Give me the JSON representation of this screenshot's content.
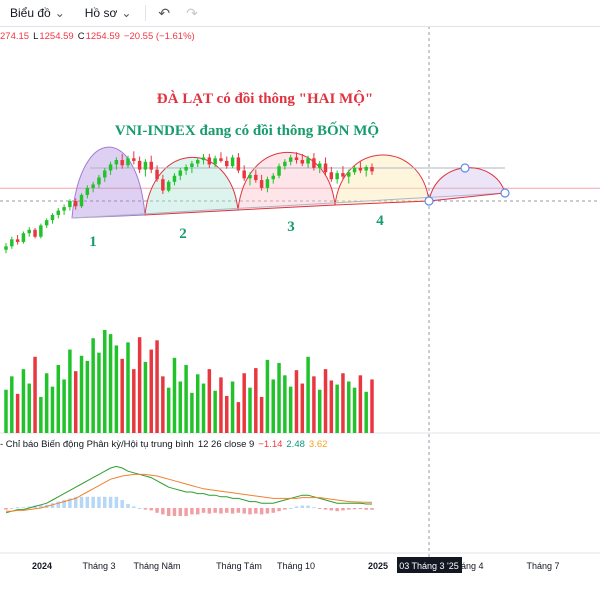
{
  "toolbar": {
    "chart_label": "Biểu đồ",
    "profile_label": "Hồ sơ",
    "chevron_icon": "chevron-down-icon",
    "undo_icon": "undo-icon",
    "redo_icon": "redo-icon"
  },
  "ohlc": {
    "h_value": "274.15",
    "l_label": "L",
    "l_value": "1254.59",
    "c_label": "C",
    "c_value": "1254.59",
    "change": "−20.55 (−1.61%)"
  },
  "macd_legend": {
    "name": "- Chỉ báo Biến động Phân kỳ/Hội tụ trung bình",
    "params": "12 26 close 9",
    "hist": "−1.14",
    "macd": "2.48",
    "signal": "3.62"
  },
  "annotations": {
    "headline_red": "ĐÀ LẠT có đồi thông \"HAI MỘ\"",
    "headline_green": "VNI-INDEX đang có đồi thông BỐN MỘ",
    "mound_labels": [
      "1",
      "2",
      "3",
      "4"
    ]
  },
  "crosshair_label": "03 Tháng 3 '25",
  "colors": {
    "up": "#22c22b",
    "down": "#e8373f",
    "headline_red": "#e0333f",
    "headline_green": "#179c6c",
    "macd_line": "#2e9e2e",
    "signal_line": "#f2812e",
    "hist_up": "#b6d7f5",
    "hist_down": "#f0a0a5"
  },
  "chart_data": {
    "type": "candlestick",
    "x_ticks": [
      "2024",
      "Tháng 3",
      "Tháng Năm",
      "Tháng Tám",
      "Tháng 10",
      "2025",
      "Tháng 4",
      "Tháng 7"
    ],
    "price_reference": 1254.59,
    "candles": [
      [
        0,
        1184,
        1192,
        1180,
        1188
      ],
      [
        1,
        1188,
        1199,
        1185,
        1196
      ],
      [
        2,
        1196,
        1201,
        1190,
        1193
      ],
      [
        3,
        1193,
        1205,
        1191,
        1203
      ],
      [
        4,
        1203,
        1210,
        1199,
        1207
      ],
      [
        5,
        1207,
        1209,
        1197,
        1199
      ],
      [
        6,
        1199,
        1214,
        1197,
        1212
      ],
      [
        7,
        1212,
        1220,
        1209,
        1218
      ],
      [
        8,
        1218,
        1226,
        1214,
        1224
      ],
      [
        9,
        1224,
        1232,
        1220,
        1229
      ],
      [
        10,
        1229,
        1236,
        1224,
        1233
      ],
      [
        11,
        1233,
        1242,
        1229,
        1240
      ],
      [
        12,
        1240,
        1243,
        1230,
        1234
      ],
      [
        13,
        1234,
        1249,
        1232,
        1247
      ],
      [
        14,
        1247,
        1258,
        1243,
        1255
      ],
      [
        15,
        1255,
        1262,
        1250,
        1259
      ],
      [
        16,
        1259,
        1270,
        1255,
        1267
      ],
      [
        17,
        1267,
        1278,
        1262,
        1275
      ],
      [
        18,
        1275,
        1285,
        1270,
        1282
      ],
      [
        19,
        1282,
        1290,
        1276,
        1287
      ],
      [
        20,
        1287,
        1294,
        1277,
        1281
      ],
      [
        21,
        1281,
        1292,
        1278,
        1289
      ],
      [
        22,
        1289,
        1297,
        1282,
        1286
      ],
      [
        23,
        1286,
        1291,
        1272,
        1276
      ],
      [
        24,
        1276,
        1288,
        1268,
        1285
      ],
      [
        25,
        1285,
        1292,
        1272,
        1276
      ],
      [
        26,
        1276,
        1281,
        1262,
        1265
      ],
      [
        27,
        1265,
        1270,
        1248,
        1252
      ],
      [
        28,
        1252,
        1264,
        1250,
        1262
      ],
      [
        29,
        1262,
        1272,
        1258,
        1269
      ],
      [
        30,
        1269,
        1278,
        1264,
        1275
      ],
      [
        31,
        1275,
        1282,
        1270,
        1279
      ],
      [
        32,
        1279,
        1286,
        1272,
        1283
      ],
      [
        33,
        1283,
        1290,
        1279,
        1287
      ],
      [
        34,
        1287,
        1294,
        1282,
        1290
      ],
      [
        35,
        1290,
        1294,
        1278,
        1282
      ],
      [
        36,
        1282,
        1292,
        1279,
        1289
      ],
      [
        37,
        1289,
        1296,
        1284,
        1286
      ],
      [
        38,
        1286,
        1291,
        1277,
        1280
      ],
      [
        39,
        1280,
        1293,
        1278,
        1290
      ],
      [
        40,
        1290,
        1295,
        1272,
        1275
      ],
      [
        41,
        1275,
        1281,
        1263,
        1266
      ],
      [
        42,
        1266,
        1273,
        1258,
        1270
      ],
      [
        43,
        1270,
        1276,
        1261,
        1264
      ],
      [
        44,
        1264,
        1270,
        1252,
        1255
      ],
      [
        45,
        1255,
        1268,
        1250,
        1265
      ],
      [
        46,
        1265,
        1272,
        1260,
        1269
      ],
      [
        47,
        1269,
        1283,
        1266,
        1280
      ],
      [
        48,
        1280,
        1288,
        1276,
        1285
      ],
      [
        49,
        1285,
        1293,
        1281,
        1290
      ],
      [
        50,
        1290,
        1296,
        1283,
        1287
      ],
      [
        51,
        1287,
        1294,
        1280,
        1283
      ],
      [
        52,
        1283,
        1292,
        1278,
        1289
      ],
      [
        53,
        1289,
        1295,
        1275,
        1278
      ],
      [
        54,
        1278,
        1286,
        1272,
        1283
      ],
      [
        55,
        1283,
        1290,
        1270,
        1273
      ],
      [
        56,
        1273,
        1279,
        1262,
        1265
      ],
      [
        57,
        1265,
        1275,
        1260,
        1272
      ],
      [
        58,
        1272,
        1280,
        1265,
        1268
      ],
      [
        59,
        1268,
        1276,
        1260,
        1273
      ],
      [
        60,
        1273,
        1281,
        1270,
        1278
      ],
      [
        61,
        1278,
        1285,
        1272,
        1275
      ],
      [
        62,
        1275,
        1281,
        1268,
        1279
      ],
      [
        63,
        1279,
        1283,
        1270,
        1274
      ]
    ],
    "volume_relative": [
      0.42,
      0.55,
      0.38,
      0.62,
      0.48,
      0.74,
      0.35,
      0.58,
      0.45,
      0.66,
      0.52,
      0.81,
      0.6,
      0.75,
      0.7,
      0.92,
      0.78,
      1.0,
      0.96,
      0.85,
      0.72,
      0.88,
      0.62,
      0.93,
      0.69,
      0.81,
      0.9,
      0.55,
      0.44,
      0.73,
      0.5,
      0.66,
      0.39,
      0.57,
      0.48,
      0.62,
      0.41,
      0.54,
      0.36,
      0.5,
      0.3,
      0.58,
      0.44,
      0.63,
      0.35,
      0.71,
      0.52,
      0.68,
      0.56,
      0.45,
      0.61,
      0.48,
      0.74,
      0.55,
      0.42,
      0.62,
      0.51,
      0.47,
      0.58,
      0.5,
      0.44,
      0.56,
      0.4,
      0.52
    ],
    "macd": [
      -3,
      -2,
      -1,
      -1,
      0,
      1,
      2,
      3,
      5,
      7,
      9,
      11,
      13,
      15,
      17,
      19,
      21,
      23,
      25,
      26,
      25,
      23,
      22,
      21,
      20,
      19,
      17,
      15,
      13,
      12,
      11,
      10,
      10,
      9,
      9,
      8,
      8,
      7,
      7,
      6,
      6,
      5,
      4,
      4,
      3,
      3,
      3,
      4,
      5,
      6,
      7,
      8,
      8,
      7,
      6,
      5,
      4,
      3,
      3,
      3,
      3,
      3,
      2.5,
      2.5
    ],
    "signal": [
      -2,
      -2,
      -1.5,
      -1.5,
      -1,
      -0.5,
      0,
      1,
      2,
      3,
      4,
      5,
      6,
      8,
      10,
      12,
      14,
      16,
      18,
      19,
      20,
      20.5,
      21,
      21,
      21,
      20.5,
      20,
      19,
      18,
      17,
      16,
      15,
      14,
      13,
      12,
      11.5,
      11,
      10.5,
      10,
      9.5,
      9,
      8.5,
      8,
      7.5,
      7,
      6.5,
      6,
      6,
      6,
      6,
      6,
      6.5,
      6.5,
      6.5,
      6.5,
      6,
      5.5,
      5,
      4.5,
      4,
      3.8,
      3.7,
      3.6,
      3.6
    ],
    "projection": "two more mounds projected after 2025"
  }
}
